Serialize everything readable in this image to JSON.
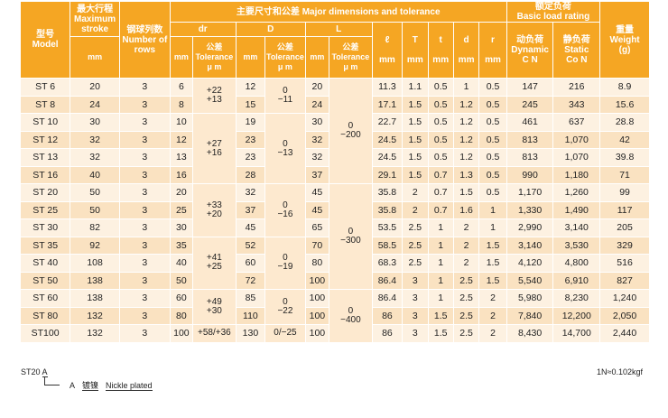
{
  "header": {
    "model_cn": "型号",
    "model_en": "Model",
    "stroke_cn": "最大行程",
    "stroke_en": "Maximum stroke",
    "stroke_unit": "mm",
    "rows_cn": "钢球列数",
    "rows_en": "Number of rows",
    "major_title": "主要尺寸和公差  Major dimensions and tolerance",
    "col_dr": "dr",
    "col_D": "D",
    "col_L": "L",
    "col_l": "ℓ",
    "col_T": "T",
    "col_t": "t",
    "col_d": "d",
    "col_r": "r",
    "unit_mm": "mm",
    "tol_cn": "公差",
    "tol_en": "Tolerance",
    "tol_unit": "μ m",
    "load_cn": "额定负荷",
    "load_en": "Basic load rating",
    "dyn_cn": "动负荷",
    "dyn_en": "Dynamic",
    "dyn_unit": "C N",
    "sta_cn": "静负荷",
    "sta_en": "Static",
    "sta_unit": "Co N",
    "weight_cn": "重量",
    "weight_en": "Weight",
    "weight_unit": "(g)"
  },
  "rows": [
    {
      "model": "ST   6",
      "stroke": "20",
      "rows": "3",
      "dr": "6",
      "D": "12",
      "L": "20",
      "l": "11.3",
      "T": "1.1",
      "t": "0.5",
      "d": "1",
      "r": "0.5",
      "C": "147",
      "Co": "216",
      "w": "8.9"
    },
    {
      "model": "ST   8",
      "stroke": "24",
      "rows": "3",
      "dr": "8",
      "D": "15",
      "L": "24",
      "l": "17.1",
      "T": "1.5",
      "t": "0.5",
      "d": "1.2",
      "r": "0.5",
      "C": "245",
      "Co": "343",
      "w": "15.6"
    },
    {
      "model": "ST  10",
      "stroke": "30",
      "rows": "3",
      "dr": "10",
      "D": "19",
      "L": "30",
      "l": "22.7",
      "T": "1.5",
      "t": "0.5",
      "d": "1.2",
      "r": "0.5",
      "C": "461",
      "Co": "637",
      "w": "28.8"
    },
    {
      "model": "ST  12",
      "stroke": "32",
      "rows": "3",
      "dr": "12",
      "D": "23",
      "L": "32",
      "l": "24.5",
      "T": "1.5",
      "t": "0.5",
      "d": "1.2",
      "r": "0.5",
      "C": "813",
      "Co": "1,070",
      "w": "42"
    },
    {
      "model": "ST  13",
      "stroke": "32",
      "rows": "3",
      "dr": "13",
      "D": "23",
      "L": "32",
      "l": "24.5",
      "T": "1.5",
      "t": "0.5",
      "d": "1.2",
      "r": "0.5",
      "C": "813",
      "Co": "1,070",
      "w": "39.8"
    },
    {
      "model": "ST  16",
      "stroke": "40",
      "rows": "3",
      "dr": "16",
      "D": "28",
      "L": "37",
      "l": "29.1",
      "T": "1.5",
      "t": "0.7",
      "d": "1.3",
      "r": "0.5",
      "C": "990",
      "Co": "1,180",
      "w": "71"
    },
    {
      "model": "ST  20",
      "stroke": "50",
      "rows": "3",
      "dr": "20",
      "D": "32",
      "L": "45",
      "l": "35.8",
      "T": "2",
      "t": "0.7",
      "d": "1.5",
      "r": "0.5",
      "C": "1,170",
      "Co": "1,260",
      "w": "99"
    },
    {
      "model": "ST  25",
      "stroke": "50",
      "rows": "3",
      "dr": "25",
      "D": "37",
      "L": "45",
      "l": "35.8",
      "T": "2",
      "t": "0.7",
      "d": "1.6",
      "r": "1",
      "C": "1,330",
      "Co": "1,490",
      "w": "117"
    },
    {
      "model": "ST  30",
      "stroke": "82",
      "rows": "3",
      "dr": "30",
      "D": "45",
      "L": "65",
      "l": "53.5",
      "T": "2.5",
      "t": "1",
      "d": "2",
      "r": "1",
      "C": "2,990",
      "Co": "3,140",
      "w": "205"
    },
    {
      "model": "ST  35",
      "stroke": "92",
      "rows": "3",
      "dr": "35",
      "D": "52",
      "L": "70",
      "l": "58.5",
      "T": "2.5",
      "t": "1",
      "d": "2",
      "r": "1.5",
      "C": "3,140",
      "Co": "3,530",
      "w": "329"
    },
    {
      "model": "ST  40",
      "stroke": "108",
      "rows": "3",
      "dr": "40",
      "D": "60",
      "L": "80",
      "l": "68.3",
      "T": "2.5",
      "t": "1",
      "d": "2",
      "r": "1.5",
      "C": "4,120",
      "Co": "4,800",
      "w": "516"
    },
    {
      "model": "ST  50",
      "stroke": "138",
      "rows": "3",
      "dr": "50",
      "D": "72",
      "L": "100",
      "l": "86.4",
      "T": "3",
      "t": "1",
      "d": "2.5",
      "r": "1.5",
      "C": "5,540",
      "Co": "6,910",
      "w": "827"
    },
    {
      "model": "ST  60",
      "stroke": "138",
      "rows": "3",
      "dr": "60",
      "D": "85",
      "L": "100",
      "l": "86.4",
      "T": "3",
      "t": "1",
      "d": "2.5",
      "r": "2",
      "C": "5,980",
      "Co": "8,230",
      "w": "1,240"
    },
    {
      "model": "ST  80",
      "stroke": "132",
      "rows": "3",
      "dr": "80",
      "D": "110",
      "L": "100",
      "l": "86",
      "T": "3",
      "t": "1.5",
      "d": "2.5",
      "r": "2",
      "C": "7,840",
      "Co": "12,200",
      "w": "2,050"
    },
    {
      "model": "ST100",
      "stroke": "132",
      "rows": "3",
      "dr": "100",
      "D": "130",
      "L": "100",
      "l": "86",
      "T": "3",
      "t": "1.5",
      "d": "2.5",
      "r": "2",
      "C": "8,430",
      "Co": "14,700",
      "w": "2,440"
    }
  ],
  "tol_dr": {
    "g1a": "+22",
    "g1b": "+13",
    "g2a": "+27",
    "g2b": "+16",
    "g3a": "+33",
    "g3b": "+20",
    "g4a": "+41",
    "g4b": "+25",
    "g5a": "+49",
    "g5b": "+30",
    "g6": "+58/+36"
  },
  "tol_D": {
    "g1a": "0",
    "g1b": "−11",
    "g2a": "0",
    "g2b": "−13",
    "g3a": "0",
    "g3b": "−16",
    "g4a": "0",
    "g4b": "−19",
    "g5a": "0",
    "g5b": "−22",
    "g6": "0/−25"
  },
  "tol_L": {
    "g1a": "0",
    "g1b": "−200",
    "g2a": "0",
    "g2b": "−300",
    "g3a": "0",
    "g3b": "−400"
  },
  "legend": {
    "model": "ST20",
    "suffix": "A",
    "code": "A",
    "plated_cn": "镀镍",
    "plated_en": "Nickle plated"
  },
  "note": "1N≈0.102kgf"
}
